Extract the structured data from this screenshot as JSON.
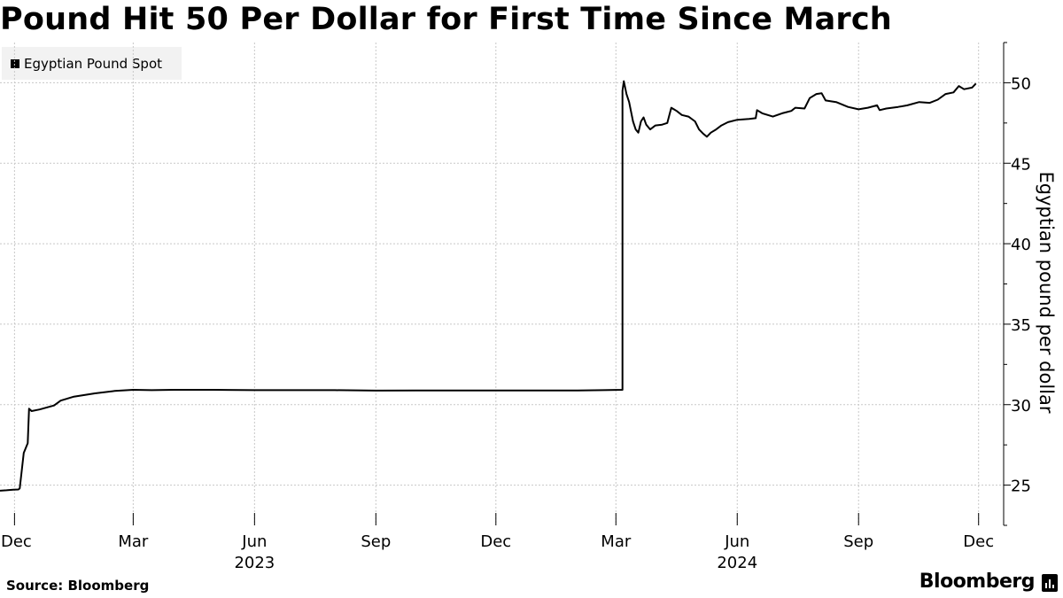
{
  "title": "Pound Hit 50 Per Dollar for First Time Since March",
  "source": "Source: Bloomberg",
  "brand": "Bloomberg",
  "brand_icon": "bloomberg-chart-icon",
  "chart_data": {
    "type": "line",
    "title": "Pound Hit 50 Per Dollar for First Time Since March",
    "ylabel": "Egyptian pound per dollar",
    "xlabel": "",
    "ylim": [
      22.5,
      52.5
    ],
    "yticks": [
      25,
      30,
      35,
      40,
      45,
      50
    ],
    "xlim": [
      "2022-11-20",
      "2024-12-20"
    ],
    "xticks": [
      {
        "date": "2022-12-01",
        "label": "Dec"
      },
      {
        "date": "2023-03-01",
        "label": "Mar"
      },
      {
        "date": "2023-06-01",
        "label": "Jun"
      },
      {
        "date": "2023-09-01",
        "label": "Sep"
      },
      {
        "date": "2023-12-01",
        "label": "Dec"
      },
      {
        "date": "2024-03-01",
        "label": "Mar"
      },
      {
        "date": "2024-06-01",
        "label": "Jun"
      },
      {
        "date": "2024-09-01",
        "label": "Sep"
      },
      {
        "date": "2024-12-01",
        "label": "Dec"
      }
    ],
    "year_labels": [
      {
        "date": "2023-06-01",
        "label": "2023"
      },
      {
        "date": "2024-06-01",
        "label": "2024"
      }
    ],
    "grid": true,
    "legend_position": "top-left",
    "series": [
      {
        "name": "Egyptian Pound Spot",
        "color": "#000000",
        "points": [
          [
            "2022-11-20",
            24.65
          ],
          [
            "2022-11-25",
            24.68
          ],
          [
            "2022-11-30",
            24.72
          ],
          [
            "2022-12-04",
            24.73
          ],
          [
            "2022-12-05",
            24.8
          ],
          [
            "2022-12-08",
            27.0
          ],
          [
            "2022-12-11",
            27.6
          ],
          [
            "2022-12-12",
            29.75
          ],
          [
            "2022-12-14",
            29.6
          ],
          [
            "2022-12-20",
            29.7
          ],
          [
            "2022-12-31",
            29.95
          ],
          [
            "2023-01-05",
            30.25
          ],
          [
            "2023-01-15",
            30.5
          ],
          [
            "2023-01-31",
            30.7
          ],
          [
            "2023-02-15",
            30.85
          ],
          [
            "2023-03-01",
            30.92
          ],
          [
            "2023-03-15",
            30.9
          ],
          [
            "2023-04-01",
            30.92
          ],
          [
            "2023-05-01",
            30.92
          ],
          [
            "2023-06-01",
            30.9
          ],
          [
            "2023-07-01",
            30.9
          ],
          [
            "2023-08-01",
            30.9
          ],
          [
            "2023-09-01",
            30.87
          ],
          [
            "2023-10-01",
            30.88
          ],
          [
            "2023-11-01",
            30.88
          ],
          [
            "2023-12-01",
            30.88
          ],
          [
            "2024-01-01",
            30.88
          ],
          [
            "2024-02-01",
            30.88
          ],
          [
            "2024-02-20",
            30.9
          ],
          [
            "2024-03-06",
            30.92
          ],
          [
            "2024-03-06",
            49.5
          ],
          [
            "2024-03-07",
            50.1
          ],
          [
            "2024-03-09",
            49.3
          ],
          [
            "2024-03-11",
            48.8
          ],
          [
            "2024-03-14",
            47.6
          ],
          [
            "2024-03-16",
            47.1
          ],
          [
            "2024-03-18",
            46.9
          ],
          [
            "2024-03-20",
            47.6
          ],
          [
            "2024-03-22",
            47.85
          ],
          [
            "2024-03-24",
            47.4
          ],
          [
            "2024-03-27",
            47.1
          ],
          [
            "2024-03-31",
            47.35
          ],
          [
            "2024-04-05",
            47.4
          ],
          [
            "2024-04-09",
            47.5
          ],
          [
            "2024-04-12",
            48.45
          ],
          [
            "2024-04-16",
            48.25
          ],
          [
            "2024-04-20",
            48.0
          ],
          [
            "2024-04-25",
            47.9
          ],
          [
            "2024-04-30",
            47.6
          ],
          [
            "2024-05-03",
            47.1
          ],
          [
            "2024-05-06",
            46.85
          ],
          [
            "2024-05-09",
            46.65
          ],
          [
            "2024-05-12",
            46.9
          ],
          [
            "2024-05-16",
            47.1
          ],
          [
            "2024-05-20",
            47.35
          ],
          [
            "2024-05-25",
            47.55
          ],
          [
            "2024-06-01",
            47.7
          ],
          [
            "2024-06-10",
            47.75
          ],
          [
            "2024-06-15",
            47.8
          ],
          [
            "2024-06-16",
            48.3
          ],
          [
            "2024-06-20",
            48.1
          ],
          [
            "2024-06-28",
            47.9
          ],
          [
            "2024-07-05",
            48.1
          ],
          [
            "2024-07-12",
            48.25
          ],
          [
            "2024-07-15",
            48.45
          ],
          [
            "2024-07-22",
            48.4
          ],
          [
            "2024-07-26",
            49.05
          ],
          [
            "2024-07-31",
            49.3
          ],
          [
            "2024-08-04",
            49.35
          ],
          [
            "2024-08-07",
            48.9
          ],
          [
            "2024-08-15",
            48.8
          ],
          [
            "2024-08-24",
            48.5
          ],
          [
            "2024-09-01",
            48.35
          ],
          [
            "2024-09-08",
            48.45
          ],
          [
            "2024-09-15",
            48.6
          ],
          [
            "2024-09-17",
            48.3
          ],
          [
            "2024-09-22",
            48.4
          ],
          [
            "2024-10-01",
            48.5
          ],
          [
            "2024-10-08",
            48.6
          ],
          [
            "2024-10-17",
            48.8
          ],
          [
            "2024-10-25",
            48.75
          ],
          [
            "2024-10-31",
            48.95
          ],
          [
            "2024-11-06",
            49.3
          ],
          [
            "2024-11-12",
            49.4
          ],
          [
            "2024-11-16",
            49.8
          ],
          [
            "2024-11-20",
            49.6
          ],
          [
            "2024-11-26",
            49.7
          ],
          [
            "2024-11-29",
            49.95
          ]
        ]
      }
    ]
  }
}
